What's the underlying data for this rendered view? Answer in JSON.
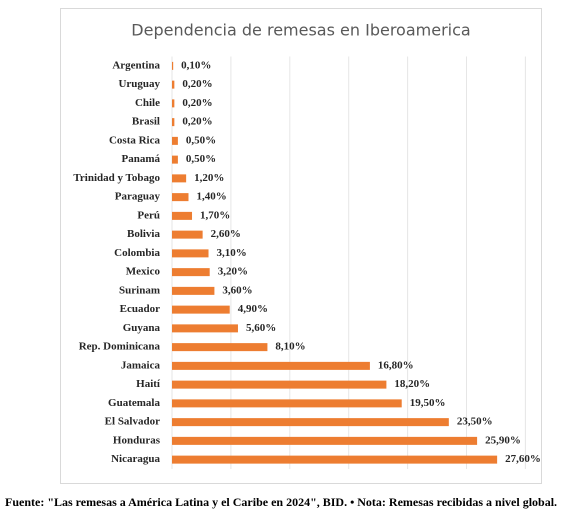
{
  "chart_data": {
    "type": "bar",
    "orientation": "horizontal",
    "title": "Dependencia de remesas en Iberoamerica",
    "categories": [
      "Argentina",
      "Uruguay",
      "Chile",
      "Brasil",
      "Costa Rica",
      "Panamá",
      "Trinidad y Tobago",
      "Paraguay",
      "Perú",
      "Bolivia",
      "Colombia",
      "Mexico",
      "Surinam",
      "Ecuador",
      "Guyana",
      "Rep. Dominicana",
      "Jamaica",
      "Haití",
      "Guatemala",
      "El Salvador",
      "Honduras",
      "Nicaragua"
    ],
    "values": [
      0.1,
      0.2,
      0.2,
      0.2,
      0.5,
      0.5,
      1.2,
      1.4,
      1.7,
      2.6,
      3.1,
      3.2,
      3.6,
      4.9,
      5.6,
      8.1,
      16.8,
      18.2,
      19.5,
      23.5,
      25.9,
      27.6
    ],
    "value_labels": [
      "0,10%",
      "0,20%",
      "0,20%",
      "0,20%",
      "0,50%",
      "0,50%",
      "1,20%",
      "1,40%",
      "1,70%",
      "2,60%",
      "3,10%",
      "3,20%",
      "3,60%",
      "4,90%",
      "5,60%",
      "8,10%",
      "16,80%",
      "18,20%",
      "19,50%",
      "23,50%",
      "25,90%",
      "27,60%"
    ],
    "color": "#ed7d31",
    "xlim": [
      0,
      30
    ],
    "xticks": [
      0,
      5,
      10,
      15,
      20,
      25,
      30
    ],
    "grid": true
  },
  "footer": "Fuente: \"Las remesas a América Latina y el Caribe en 2024\", BID. • Nota: Remesas recibidas a nivel global."
}
